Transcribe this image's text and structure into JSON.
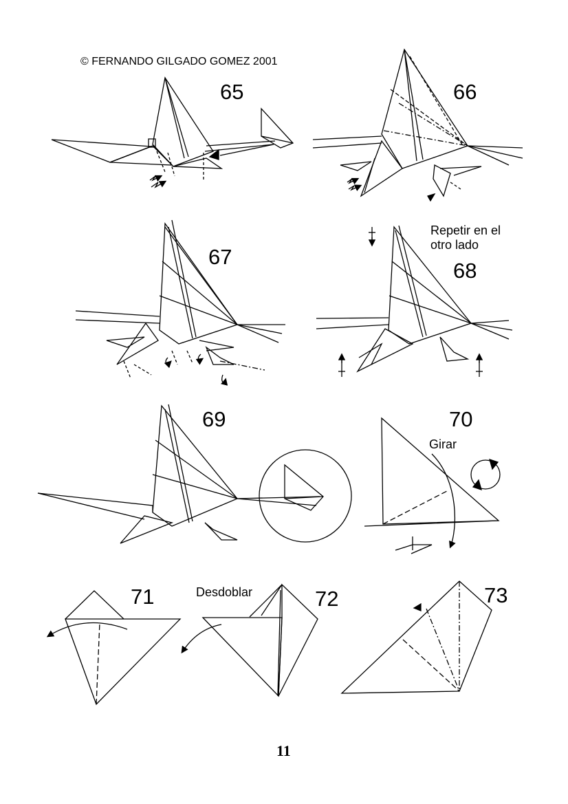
{
  "copyright": "© FERNANDO GILGADO GOMEZ 2001",
  "steps": {
    "s65": {
      "number": "65"
    },
    "s66": {
      "number": "66"
    },
    "s67": {
      "number": "67"
    },
    "s68": {
      "number": "68",
      "note": "Repetir en el\notro lado"
    },
    "s69": {
      "number": "69"
    },
    "s70": {
      "number": "70",
      "note": "Girar"
    },
    "s71": {
      "number": "71"
    },
    "s72": {
      "number": "72",
      "note": "Desdoblar"
    },
    "s73": {
      "number": "73"
    }
  },
  "page_number": "11"
}
